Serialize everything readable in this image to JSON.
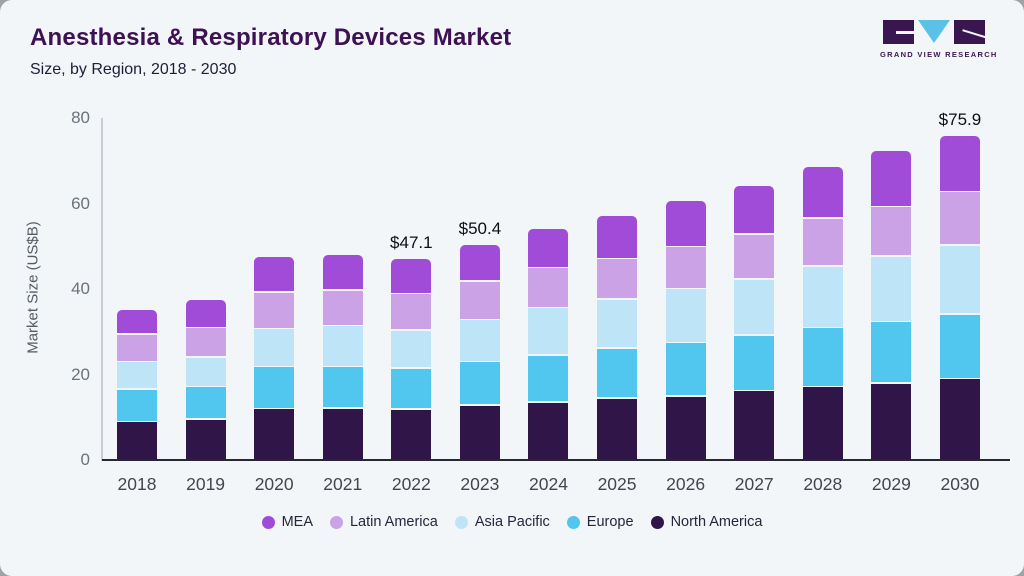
{
  "header": {
    "title": "Anesthesia & Respiratory Devices Market",
    "subtitle": "Size, by Region, 2018 - 2030",
    "logo": {
      "brand": "GRAND VIEW RESEARCH"
    }
  },
  "chart_data": {
    "type": "bar",
    "stacked": true,
    "title": "Anesthesia & Respiratory Devices Market Size, by Region, 2018 - 2030",
    "xlabel": "",
    "ylabel": "Market Size (US$B)",
    "ylim": [
      0,
      80
    ],
    "yticks": [
      0,
      20,
      40,
      60,
      80
    ],
    "grid": false,
    "legend_position": "bottom",
    "categories": [
      "2018",
      "2019",
      "2020",
      "2021",
      "2022",
      "2023",
      "2024",
      "2025",
      "2026",
      "2027",
      "2028",
      "2029",
      "2030"
    ],
    "series": [
      {
        "name": "North America",
        "color": "#301549",
        "values": [
          9.2,
          9.8,
          12.2,
          12.3,
          12.1,
          13.0,
          13.8,
          14.7,
          15.2,
          16.4,
          17.4,
          18.2,
          19.3
        ]
      },
      {
        "name": "Europe",
        "color": "#51c6ef",
        "values": [
          7.6,
          7.6,
          9.8,
          9.7,
          9.6,
          10.2,
          11.0,
          11.7,
          12.5,
          13.0,
          13.8,
          14.4,
          15.0
        ]
      },
      {
        "name": "Asia Pacific",
        "color": "#bee4f8",
        "values": [
          6.4,
          6.9,
          8.9,
          9.6,
          8.9,
          9.9,
          11.1,
          11.4,
          12.6,
          13.1,
          14.4,
          15.3,
          16.2
        ]
      },
      {
        "name": "Latin America",
        "color": "#cba2e6",
        "values": [
          6.4,
          6.9,
          8.6,
          8.3,
          8.5,
          9.0,
          9.3,
          9.5,
          9.8,
          10.5,
          11.2,
          11.6,
          12.5
        ]
      },
      {
        "name": "MEA",
        "color": "#a14cd8",
        "values": [
          5.6,
          6.2,
          8.0,
          8.1,
          8.0,
          8.3,
          8.8,
          9.8,
          10.5,
          11.1,
          11.7,
          12.7,
          12.9
        ]
      }
    ],
    "totals_labels": {
      "2022": "$47.1",
      "2023": "$50.4",
      "2030": "$75.9"
    },
    "legend_order": [
      "MEA",
      "Latin America",
      "Asia Pacific",
      "Europe",
      "North America"
    ]
  }
}
